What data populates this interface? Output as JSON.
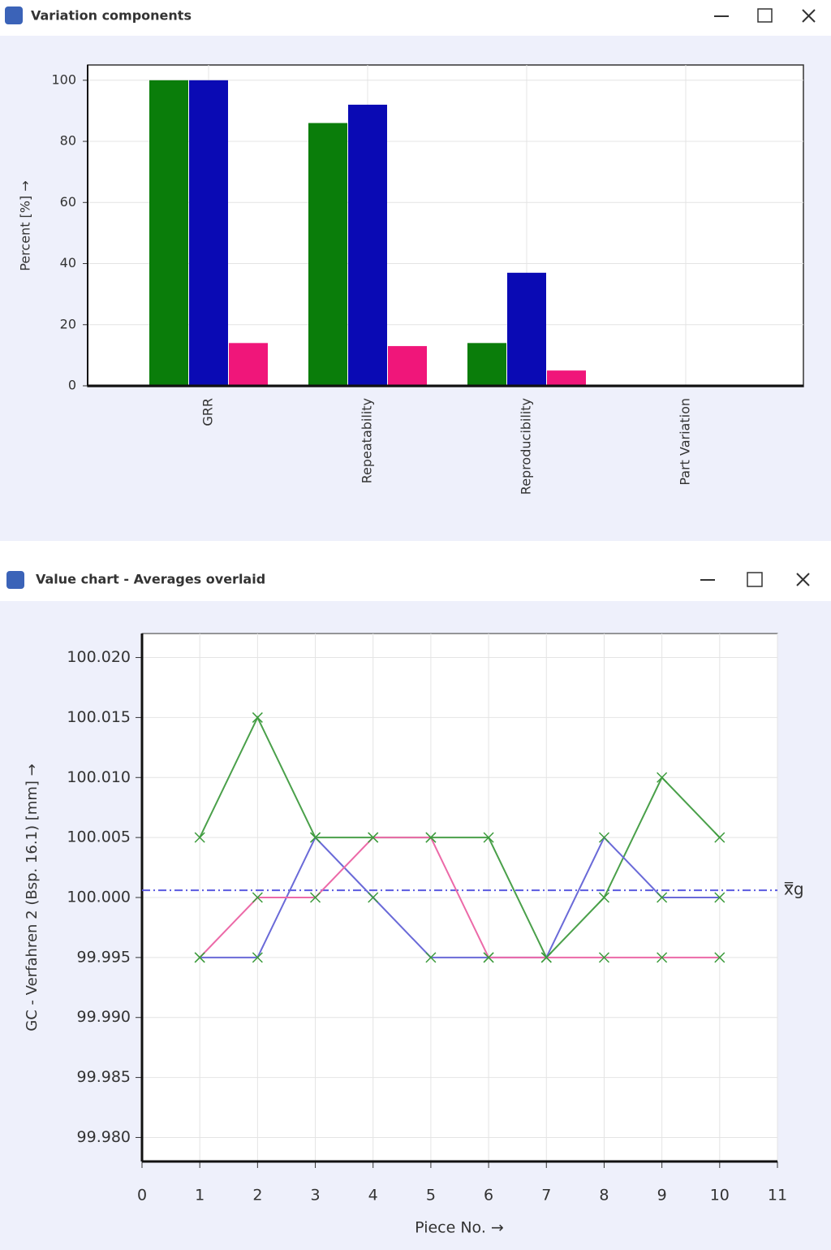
{
  "chart_data": [
    {
      "type": "bar",
      "title": "Variation components",
      "y_label": "Percent [%] →",
      "categories": [
        "GRR",
        "Repeatability",
        "Reproducibility",
        "Part Variation"
      ],
      "series": [
        {
          "color": "#0a7d0a",
          "values": [
            100,
            86,
            14,
            0
          ]
        },
        {
          "color": "#0a0ab4",
          "values": [
            100,
            92,
            37,
            0
          ]
        },
        {
          "color": "#f0167a",
          "values": [
            14,
            13,
            5,
            0
          ]
        }
      ],
      "ylim": [
        0,
        105
      ],
      "yticks": [
        0,
        20,
        40,
        60,
        80,
        100
      ],
      "grid": true
    },
    {
      "type": "line",
      "title": "Value chart - Averages overlaid",
      "y_label": "GC - Verfahren 2 (Bsp. 16.1) [mm] →",
      "x_label": "Piece No. →",
      "x": [
        1,
        2,
        3,
        4,
        5,
        6,
        7,
        8,
        9,
        10
      ],
      "marker_color": "#3a9a3a",
      "series": [
        {
          "color": "#4aa04a",
          "values": [
            100.005,
            100.015,
            100.005,
            100.005,
            100.005,
            100.005,
            99.995,
            100.0,
            100.01,
            100.005
          ]
        },
        {
          "color": "#6a6ad8",
          "values": [
            99.995,
            99.995,
            100.005,
            100.0,
            99.995,
            99.995,
            99.995,
            100.005,
            100.0,
            100.0
          ]
        },
        {
          "color": "#ec6aa8",
          "values": [
            99.995,
            100.0,
            100.0,
            100.005,
            100.005,
            99.995,
            99.995,
            99.995,
            99.995,
            99.995
          ]
        }
      ],
      "reference_lines": [
        {
          "value": 100.0006,
          "label": "x̿g",
          "color": "#5a5ae0"
        }
      ],
      "xlim": [
        0,
        11
      ],
      "xticks": [
        0,
        1,
        2,
        3,
        4,
        5,
        6,
        7,
        8,
        9,
        10,
        11
      ],
      "ylim": [
        99.978,
        100.022
      ],
      "yticks": [
        {
          "value": 99.98,
          "label": "99.980"
        },
        {
          "value": 99.985,
          "label": "99.985"
        },
        {
          "value": 99.99,
          "label": "99.990"
        },
        {
          "value": 99.995,
          "label": "99.995"
        },
        {
          "value": 100.0,
          "label": "100.000"
        },
        {
          "value": 100.005,
          "label": "100.005"
        },
        {
          "value": 100.01,
          "label": "100.010"
        },
        {
          "value": 100.015,
          "label": "100.015"
        },
        {
          "value": 100.02,
          "label": "100.020"
        }
      ],
      "grid": true
    }
  ]
}
